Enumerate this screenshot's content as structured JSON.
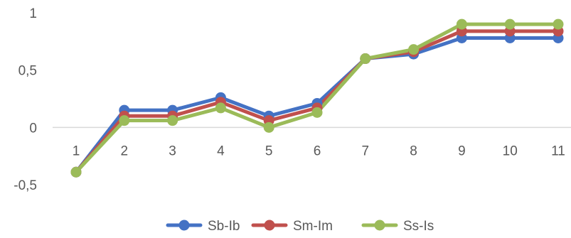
{
  "chart_data": {
    "type": "line",
    "categories": [
      "1",
      "2",
      "3",
      "4",
      "5",
      "6",
      "7",
      "8",
      "9",
      "10",
      "11"
    ],
    "y_ticks": [
      "-0,5",
      "0",
      "0,5",
      "1"
    ],
    "y_tick_values": [
      -0.5,
      0,
      0.5,
      1
    ],
    "ylim": [
      -0.5,
      1
    ],
    "grid": false,
    "legend_position": "bottom",
    "series": [
      {
        "name": "Sb-Ib",
        "color": "#4472C4",
        "values": [
          -0.39,
          0.15,
          0.15,
          0.26,
          0.1,
          0.21,
          0.6,
          0.64,
          0.78,
          0.78,
          0.78
        ]
      },
      {
        "name": "Sm-Im",
        "color": "#C0504D",
        "values": [
          -0.39,
          0.1,
          0.1,
          0.22,
          0.06,
          0.17,
          0.6,
          0.66,
          0.84,
          0.84,
          0.84
        ]
      },
      {
        "name": "Ss-Is",
        "color": "#9BBB59",
        "values": [
          -0.39,
          0.06,
          0.06,
          0.17,
          0.0,
          0.13,
          0.6,
          0.68,
          0.9,
          0.9,
          0.9
        ]
      }
    ]
  }
}
